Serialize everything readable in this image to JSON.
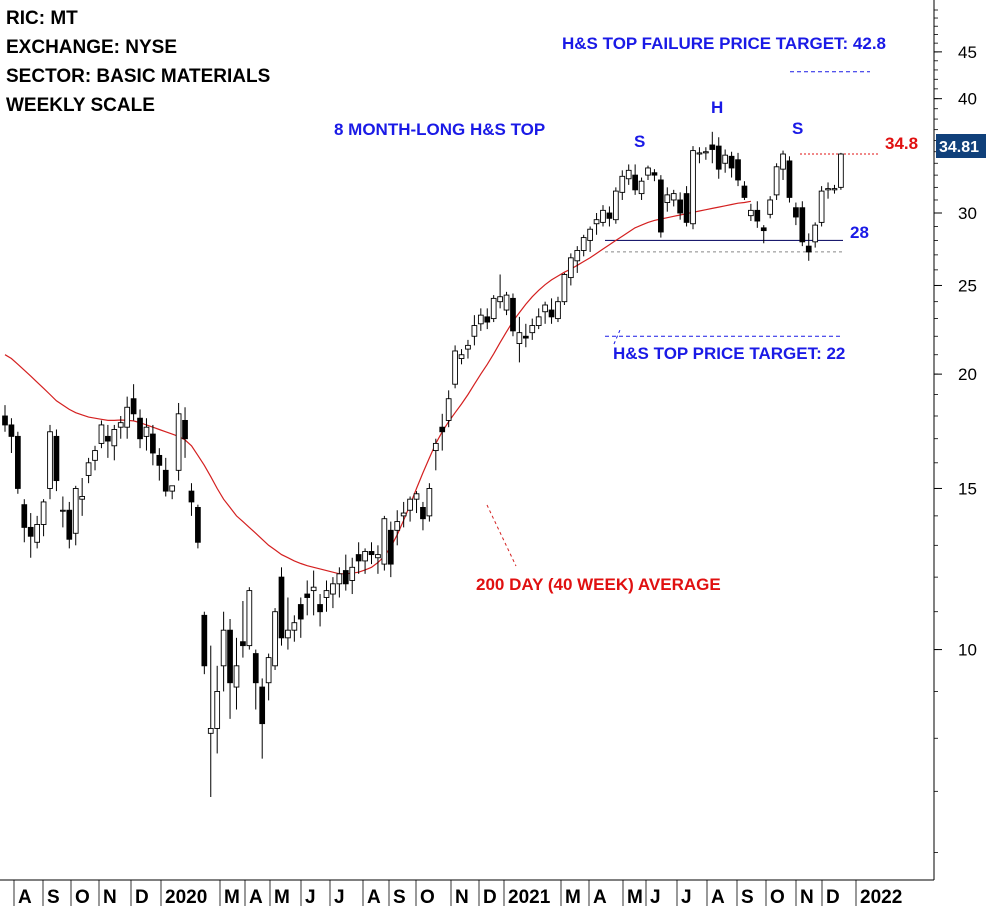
{
  "info": {
    "ric": "RIC: MT",
    "exchange": "EXCHANGE: NYSE",
    "sector": "SECTOR: BASIC MATERIALS",
    "scale": "WEEKLY SCALE"
  },
  "annotations": {
    "pattern": "8 MONTH-LONG H&S TOP",
    "failure_target": "H&S TOP FAILURE PRICE TARGET: 42.8",
    "price_target": "H&S TOP PRICE TARGET: 22",
    "moving_average": "200 DAY (40 WEEK) AVERAGE",
    "shoulder_left": "S",
    "head": "H",
    "shoulder_right": "S",
    "neckline_value": "28",
    "high_value": "34.8"
  },
  "colors": {
    "annotation_blue": "#1a1ae6",
    "annotation_red": "#e01010",
    "moving_average": "#d42020",
    "price_badge": "#10407a",
    "candle": "#000000"
  },
  "chart_data": {
    "type": "candlestick",
    "scale": "log",
    "ylim": [
      5.6,
      50
    ],
    "y_ticks": [
      10,
      15,
      20,
      25,
      30,
      40,
      45
    ],
    "last_price": "34.81",
    "x_labels": [
      "A",
      "S",
      "O",
      "N",
      "D",
      "2020",
      "M",
      "A",
      "M",
      "J",
      "J",
      "A",
      "S",
      "O",
      "N",
      "D",
      "2021",
      "M",
      "A",
      "M",
      "J",
      "J",
      "A",
      "S",
      "O",
      "N",
      "D",
      "2022"
    ],
    "levels": [
      {
        "name": "failure_target",
        "value": 42.8,
        "color": "blue",
        "style": "dashed"
      },
      {
        "name": "high",
        "value": 34.8,
        "color": "red",
        "style": "dotted"
      },
      {
        "name": "neckline",
        "value": 28,
        "color": "navy",
        "style": "solid"
      },
      {
        "name": "neckline_low",
        "value": 27.2,
        "color": "gray",
        "style": "dashed"
      },
      {
        "name": "price_target",
        "value": 22,
        "color": "blue",
        "style": "dashed"
      }
    ],
    "candles": [
      [
        18.0,
        18.5,
        17.3,
        17.6
      ],
      [
        17.6,
        17.9,
        16.4,
        17.1
      ],
      [
        17.1,
        17.3,
        14.8,
        15.0
      ],
      [
        14.4,
        14.6,
        13.1,
        13.6
      ],
      [
        13.6,
        14.1,
        12.6,
        13.3
      ],
      [
        13.1,
        14.0,
        12.9,
        13.7
      ],
      [
        13.7,
        14.6,
        13.3,
        14.5
      ],
      [
        15.0,
        17.6,
        14.6,
        17.3
      ],
      [
        17.1,
        17.4,
        14.9,
        15.3
      ],
      [
        14.2,
        14.7,
        13.6,
        14.2
      ],
      [
        14.2,
        14.5,
        12.9,
        13.2
      ],
      [
        13.4,
        15.1,
        13.0,
        15.0
      ],
      [
        14.6,
        15.4,
        14.0,
        14.7
      ],
      [
        15.5,
        16.2,
        15.2,
        16.0
      ],
      [
        16.1,
        16.7,
        15.7,
        16.5
      ],
      [
        16.8,
        17.8,
        16.6,
        17.6
      ],
      [
        17.1,
        17.6,
        16.2,
        16.9
      ],
      [
        16.7,
        17.6,
        16.1,
        17.4
      ],
      [
        17.5,
        18.0,
        17.0,
        17.7
      ],
      [
        17.5,
        18.9,
        17.0,
        18.4
      ],
      [
        18.8,
        19.5,
        17.8,
        18.1
      ],
      [
        17.9,
        18.3,
        16.6,
        17.0
      ],
      [
        17.1,
        17.9,
        16.5,
        17.5
      ],
      [
        17.2,
        17.6,
        15.9,
        16.4
      ],
      [
        16.3,
        16.6,
        15.3,
        15.9
      ],
      [
        15.7,
        16.2,
        14.7,
        14.9
      ],
      [
        14.9,
        15.1,
        14.6,
        15.1
      ],
      [
        15.7,
        18.6,
        15.3,
        18.1
      ],
      [
        17.8,
        18.4,
        16.2,
        17.0
      ],
      [
        14.9,
        15.2,
        14.0,
        14.5
      ],
      [
        14.3,
        14.4,
        12.9,
        13.1
      ],
      [
        10.9,
        11.0,
        9.4,
        9.6
      ],
      [
        8.1,
        10.1,
        6.9,
        8.2
      ],
      [
        8.2,
        9.6,
        7.7,
        9.0
      ],
      [
        9.6,
        11.0,
        9.0,
        10.5
      ],
      [
        10.5,
        10.8,
        8.4,
        9.2
      ],
      [
        9.1,
        10.3,
        8.6,
        9.6
      ],
      [
        10.2,
        11.3,
        9.8,
        10.1
      ],
      [
        10.1,
        11.7,
        10.0,
        11.6
      ],
      [
        9.9,
        10.0,
        8.6,
        9.2
      ],
      [
        9.1,
        9.3,
        7.6,
        8.3
      ],
      [
        9.2,
        9.9,
        8.8,
        9.8
      ],
      [
        9.6,
        11.1,
        9.5,
        11.0
      ],
      [
        12.0,
        12.3,
        10.1,
        10.3
      ],
      [
        10.3,
        11.4,
        10.0,
        10.5
      ],
      [
        10.5,
        10.9,
        10.2,
        10.7
      ],
      [
        11.2,
        11.4,
        10.3,
        10.8
      ],
      [
        11.5,
        11.9,
        10.9,
        11.4
      ],
      [
        11.6,
        12.2,
        10.9,
        11.7
      ],
      [
        11.2,
        11.5,
        10.6,
        11.0
      ],
      [
        11.4,
        11.9,
        11.0,
        11.6
      ],
      [
        11.5,
        12.0,
        11.1,
        11.8
      ],
      [
        11.8,
        12.3,
        11.4,
        12.1
      ],
      [
        12.2,
        12.7,
        11.6,
        11.8
      ],
      [
        11.9,
        12.6,
        11.5,
        12.3
      ],
      [
        12.7,
        13.1,
        12.1,
        12.5
      ],
      [
        12.5,
        12.9,
        12.1,
        12.8
      ],
      [
        12.8,
        13.1,
        12.4,
        12.7
      ],
      [
        12.6,
        13.0,
        12.1,
        12.7
      ],
      [
        12.4,
        14.0,
        12.2,
        13.9
      ],
      [
        13.5,
        13.8,
        12.0,
        12.4
      ],
      [
        13.5,
        14.2,
        13.0,
        13.8
      ],
      [
        14.0,
        14.5,
        13.6,
        14.1
      ],
      [
        14.2,
        14.7,
        13.8,
        14.6
      ],
      [
        14.6,
        14.9,
        14.1,
        14.8
      ],
      [
        14.3,
        14.5,
        13.5,
        13.9
      ],
      [
        14.0,
        15.2,
        13.8,
        15.0
      ],
      [
        16.5,
        17.0,
        15.7,
        16.8
      ],
      [
        17.5,
        18.1,
        16.5,
        17.3
      ],
      [
        17.8,
        19.2,
        17.5,
        18.8
      ],
      [
        19.5,
        21.5,
        19.3,
        21.2
      ],
      [
        20.8,
        21.3,
        20.5,
        21.0
      ],
      [
        21.3,
        21.8,
        20.8,
        21.5
      ],
      [
        22.0,
        23.2,
        21.5,
        22.6
      ],
      [
        22.7,
        23.6,
        22.3,
        23.2
      ],
      [
        23.1,
        23.6,
        22.4,
        22.8
      ],
      [
        23.0,
        24.4,
        22.8,
        24.2
      ],
      [
        24.0,
        25.7,
        23.6,
        24.3
      ],
      [
        23.5,
        24.6,
        23.2,
        24.4
      ],
      [
        24.2,
        24.5,
        22.0,
        22.3
      ],
      [
        21.6,
        23.1,
        20.6,
        22.2
      ],
      [
        22.0,
        22.7,
        21.4,
        21.9
      ],
      [
        22.2,
        23.0,
        21.8,
        22.6
      ],
      [
        22.6,
        23.6,
        22.4,
        23.1
      ],
      [
        23.4,
        24.0,
        22.7,
        23.8
      ],
      [
        23.5,
        24.2,
        22.7,
        23.1
      ],
      [
        23.0,
        24.3,
        22.8,
        24.0
      ],
      [
        24.0,
        25.8,
        23.8,
        25.7
      ],
      [
        25.5,
        27.1,
        25.0,
        26.8
      ],
      [
        26.6,
        27.6,
        25.8,
        27.3
      ],
      [
        27.3,
        28.4,
        26.9,
        28.2
      ],
      [
        28.0,
        29.0,
        27.2,
        28.8
      ],
      [
        29.2,
        30.0,
        28.4,
        29.5
      ],
      [
        29.3,
        30.6,
        29.0,
        30.2
      ],
      [
        30.0,
        30.5,
        29.0,
        29.6
      ],
      [
        29.5,
        32.0,
        29.2,
        31.7
      ],
      [
        31.6,
        33.4,
        31.0,
        32.9
      ],
      [
        32.7,
        33.9,
        32.2,
        33.4
      ],
      [
        33.0,
        33.9,
        31.4,
        31.8
      ],
      [
        31.5,
        32.8,
        31.0,
        32.5
      ],
      [
        33.0,
        33.8,
        32.6,
        33.6
      ],
      [
        33.2,
        33.5,
        32.5,
        33.0
      ],
      [
        32.6,
        33.0,
        28.2,
        28.6
      ],
      [
        30.8,
        32.0,
        30.1,
        31.4
      ],
      [
        31.0,
        31.8,
        30.5,
        31.5
      ],
      [
        31.0,
        31.6,
        29.5,
        30.0
      ],
      [
        31.5,
        32.1,
        29.0,
        29.3
      ],
      [
        29.2,
        35.5,
        28.8,
        35.1
      ],
      [
        34.8,
        35.4,
        34.0,
        34.9
      ],
      [
        34.9,
        35.4,
        34.3,
        35.0
      ],
      [
        35.6,
        36.8,
        34.0,
        35.2
      ],
      [
        35.5,
        36.3,
        32.7,
        33.5
      ],
      [
        34.0,
        35.2,
        33.2,
        34.7
      ],
      [
        34.6,
        35.0,
        32.8,
        33.6
      ],
      [
        34.3,
        34.9,
        32.1,
        32.6
      ],
      [
        32.1,
        32.5,
        31.0,
        31.2
      ],
      [
        29.8,
        30.7,
        29.4,
        30.2
      ],
      [
        30.2,
        30.9,
        28.9,
        29.4
      ],
      [
        28.9,
        29.1,
        27.8,
        28.7
      ],
      [
        29.9,
        31.3,
        29.6,
        31.0
      ],
      [
        31.4,
        34.0,
        31.0,
        33.7
      ],
      [
        33.5,
        35.1,
        32.6,
        34.8
      ],
      [
        34.2,
        34.6,
        30.8,
        31.2
      ],
      [
        30.4,
        30.8,
        29.1,
        29.7
      ],
      [
        30.4,
        30.9,
        27.6,
        27.9
      ],
      [
        27.6,
        28.5,
        26.6,
        27.2
      ],
      [
        27.9,
        29.3,
        27.5,
        29.1
      ],
      [
        29.3,
        32.1,
        29.0,
        31.7
      ],
      [
        31.8,
        32.4,
        31.1,
        31.9
      ],
      [
        31.8,
        32.2,
        31.5,
        31.9
      ],
      [
        32.0,
        34.9,
        31.8,
        34.8
      ]
    ],
    "moving_average": [
      21.0,
      20.8,
      20.5,
      20.2,
      19.9,
      19.6,
      19.3,
      19.0,
      18.7,
      18.5,
      18.3,
      18.15,
      18.05,
      17.95,
      17.9,
      17.85,
      17.8,
      17.8,
      17.82,
      17.8,
      17.78,
      17.7,
      17.6,
      17.5,
      17.4,
      17.3,
      17.2,
      17.1,
      16.95,
      16.7,
      16.3,
      15.9,
      15.45,
      15.0,
      14.6,
      14.3,
      14.0,
      13.8,
      13.6,
      13.4,
      13.2,
      13.0,
      12.85,
      12.7,
      12.6,
      12.5,
      12.42,
      12.35,
      12.3,
      12.25,
      12.2,
      12.15,
      12.1,
      12.1,
      12.12,
      12.15,
      12.22,
      12.3,
      12.45,
      12.65,
      12.95,
      13.35,
      13.85,
      14.4,
      15.0,
      15.6,
      16.2,
      16.8,
      17.3,
      17.75,
      18.15,
      18.55,
      19.0,
      19.5,
      20.0,
      20.5,
      21.05,
      21.65,
      22.25,
      22.85,
      23.35,
      23.85,
      24.3,
      24.7,
      25.05,
      25.35,
      25.6,
      25.85,
      26.05,
      26.3,
      26.55,
      26.8,
      27.1,
      27.4,
      27.7,
      28.0,
      28.3,
      28.6,
      28.9,
      29.1,
      29.3,
      29.45,
      29.55,
      29.65,
      29.75,
      29.85,
      29.95,
      30.05,
      30.15,
      30.25,
      30.35,
      30.45,
      30.55,
      30.65,
      30.75,
      30.8,
      30.9
    ]
  }
}
